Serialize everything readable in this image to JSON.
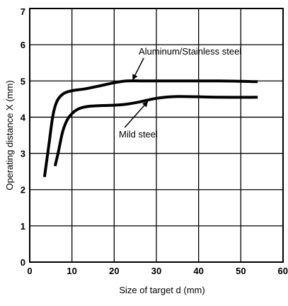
{
  "chart_data": {
    "type": "line",
    "xlabel": "Size of target d (mm)",
    "ylabel": "Operating distance X (mm)",
    "xlim": [
      0,
      60
    ],
    "ylim": [
      0,
      7
    ],
    "xticks": [
      "0",
      "10",
      "20",
      "30",
      "40",
      "50",
      "60"
    ],
    "yticks": [
      "0",
      "1",
      "2",
      "3",
      "4",
      "5",
      "6",
      "7"
    ],
    "grid": true,
    "series": [
      {
        "name": "Aluminum/Stainless steel",
        "x": [
          3.5,
          4.5,
          5.5,
          6.5,
          8,
          10,
          13,
          16,
          20,
          23,
          27,
          35,
          45,
          54
        ],
        "y": [
          2.35,
          3.2,
          4.05,
          4.45,
          4.65,
          4.73,
          4.78,
          4.85,
          4.95,
          5.0,
          5.0,
          5.0,
          5.0,
          4.98
        ]
      },
      {
        "name": "Mild steel",
        "x": [
          6,
          6.8,
          7.8,
          9,
          10.5,
          12,
          14,
          17,
          20,
          23,
          26,
          30,
          35,
          45,
          54
        ],
        "y": [
          2.65,
          3.05,
          3.6,
          3.95,
          4.15,
          4.25,
          4.3,
          4.32,
          4.33,
          4.36,
          4.42,
          4.52,
          4.57,
          4.55,
          4.55
        ]
      }
    ],
    "annotations": [
      {
        "text": "Aluminum/Stainless steel",
        "series": 0
      },
      {
        "text": "Mild steel",
        "series": 1
      }
    ]
  }
}
